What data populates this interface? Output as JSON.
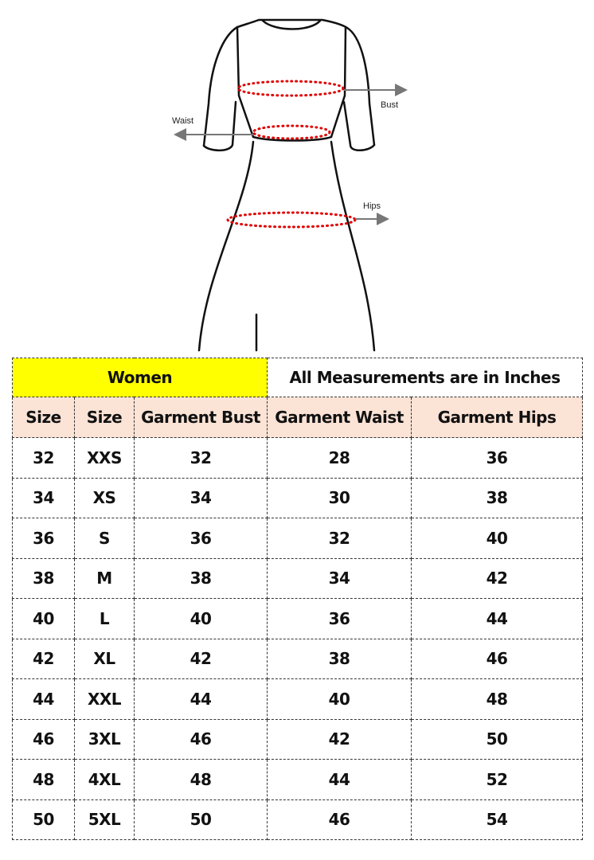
{
  "diagram": {
    "labels": {
      "bust": "Bust",
      "waist": "Waist",
      "hips": "Hips"
    },
    "colors": {
      "measure_dots": "#e00000",
      "arrow": "#777777",
      "outline": "#111111"
    }
  },
  "table": {
    "title": "Women",
    "units_note": "All Measurements are in Inches",
    "colors": {
      "title_bg": "#ffff00",
      "header_bg": "#fbe3d6"
    },
    "headers": [
      "Size",
      "Size",
      "Garment Bust",
      "Garment Waist",
      "Garment Hips"
    ],
    "rows": [
      [
        "32",
        "XXS",
        "32",
        "28",
        "36"
      ],
      [
        "34",
        "XS",
        "34",
        "30",
        "38"
      ],
      [
        "36",
        "S",
        "36",
        "32",
        "40"
      ],
      [
        "38",
        "M",
        "38",
        "34",
        "42"
      ],
      [
        "40",
        "L",
        "40",
        "36",
        "44"
      ],
      [
        "42",
        "XL",
        "42",
        "38",
        "46"
      ],
      [
        "44",
        "XXL",
        "44",
        "40",
        "48"
      ],
      [
        "46",
        "3XL",
        "46",
        "42",
        "50"
      ],
      [
        "48",
        "4XL",
        "48",
        "44",
        "52"
      ],
      [
        "50",
        "5XL",
        "50",
        "46",
        "54"
      ]
    ]
  }
}
